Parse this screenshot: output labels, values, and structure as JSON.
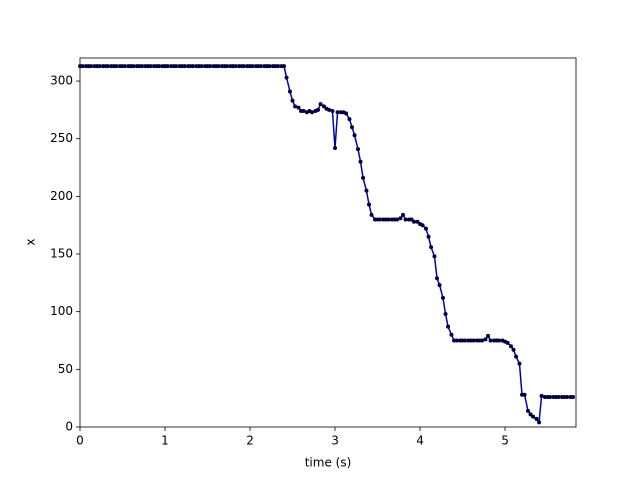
{
  "chart_data": {
    "type": "line",
    "x_label": "time (s)",
    "y_label": "x",
    "xlim": [
      0,
      5.835
    ],
    "ylim": [
      0,
      320
    ],
    "xticks": [
      0,
      1,
      2,
      3,
      4,
      5
    ],
    "yticks": [
      0,
      50,
      100,
      150,
      200,
      250,
      300
    ],
    "color": "#0000b4",
    "marker_color": "#00003c",
    "x": [
      0,
      0.03,
      0.07,
      0.1,
      0.13,
      0.17,
      0.2,
      0.23,
      0.27,
      0.3,
      0.33,
      0.37,
      0.4,
      0.43,
      0.47,
      0.5,
      0.53,
      0.57,
      0.6,
      0.63,
      0.67,
      0.7,
      0.73,
      0.77,
      0.8,
      0.83,
      0.87,
      0.9,
      0.93,
      0.97,
      1,
      1.03,
      1.07,
      1.1,
      1.13,
      1.17,
      1.2,
      1.23,
      1.27,
      1.3,
      1.33,
      1.37,
      1.4,
      1.43,
      1.47,
      1.5,
      1.53,
      1.57,
      1.6,
      1.63,
      1.67,
      1.7,
      1.73,
      1.77,
      1.8,
      1.83,
      1.87,
      1.9,
      1.93,
      1.97,
      2,
      2.03,
      2.07,
      2.1,
      2.13,
      2.17,
      2.2,
      2.23,
      2.27,
      2.3,
      2.33,
      2.37,
      2.4,
      2.43,
      2.47,
      2.5,
      2.53,
      2.57,
      2.6,
      2.63,
      2.67,
      2.7,
      2.73,
      2.77,
      2.8,
      2.83,
      2.87,
      2.9,
      2.93,
      2.97,
      3,
      3.03,
      3.07,
      3.1,
      3.13,
      3.17,
      3.2,
      3.23,
      3.27,
      3.3,
      3.33,
      3.37,
      3.4,
      3.43,
      3.47,
      3.5,
      3.53,
      3.57,
      3.6,
      3.63,
      3.67,
      3.7,
      3.73,
      3.77,
      3.8,
      3.83,
      3.87,
      3.9,
      3.93,
      3.97,
      4,
      4.03,
      4.07,
      4.1,
      4.13,
      4.17,
      4.2,
      4.23,
      4.27,
      4.3,
      4.33,
      4.37,
      4.4,
      4.43,
      4.47,
      4.5,
      4.53,
      4.57,
      4.6,
      4.63,
      4.67,
      4.7,
      4.73,
      4.77,
      4.8,
      4.83,
      4.87,
      4.9,
      4.93,
      4.97,
      5,
      5.03,
      5.07,
      5.1,
      5.13,
      5.17,
      5.2,
      5.23,
      5.27,
      5.3,
      5.33,
      5.37,
      5.4,
      5.43,
      5.47,
      5.5,
      5.53,
      5.57,
      5.6,
      5.63,
      5.67,
      5.7,
      5.73,
      5.77,
      5.8
    ],
    "values": [
      313,
      313,
      313,
      313,
      313,
      313,
      313,
      313,
      313,
      313,
      313,
      313,
      313,
      313,
      313,
      313,
      313,
      313,
      313,
      313,
      313,
      313,
      313,
      313,
      313,
      313,
      313,
      313,
      313,
      313,
      313,
      313,
      313,
      313,
      313,
      313,
      313,
      313,
      313,
      313,
      313,
      313,
      313,
      313,
      313,
      313,
      313,
      313,
      313,
      313,
      313,
      313,
      313,
      313,
      313,
      313,
      313,
      313,
      313,
      313,
      313,
      313,
      313,
      313,
      313,
      313,
      313,
      313,
      313,
      313,
      313,
      313,
      313,
      303,
      291,
      283,
      278,
      277,
      274,
      274,
      273,
      274,
      273,
      274,
      275,
      280,
      278,
      276,
      275,
      274,
      242,
      273,
      273,
      273,
      272,
      267,
      260,
      253,
      241,
      230,
      216,
      205,
      193,
      184,
      180,
      180,
      180,
      180,
      180,
      180,
      180,
      180,
      180,
      181,
      184,
      180,
      180,
      180,
      178,
      178,
      176,
      175,
      172,
      165,
      156,
      148,
      129,
      123,
      112,
      98,
      87,
      80,
      75,
      75,
      75,
      75,
      75,
      75,
      75,
      75,
      75,
      75,
      75,
      76,
      79,
      75,
      75,
      75,
      75,
      75,
      74,
      73,
      70,
      67,
      61,
      55,
      28,
      28,
      14,
      11,
      9,
      7,
      4,
      27,
      26,
      26,
      26,
      26,
      26,
      26,
      26,
      26,
      26,
      26,
      26
    ]
  }
}
